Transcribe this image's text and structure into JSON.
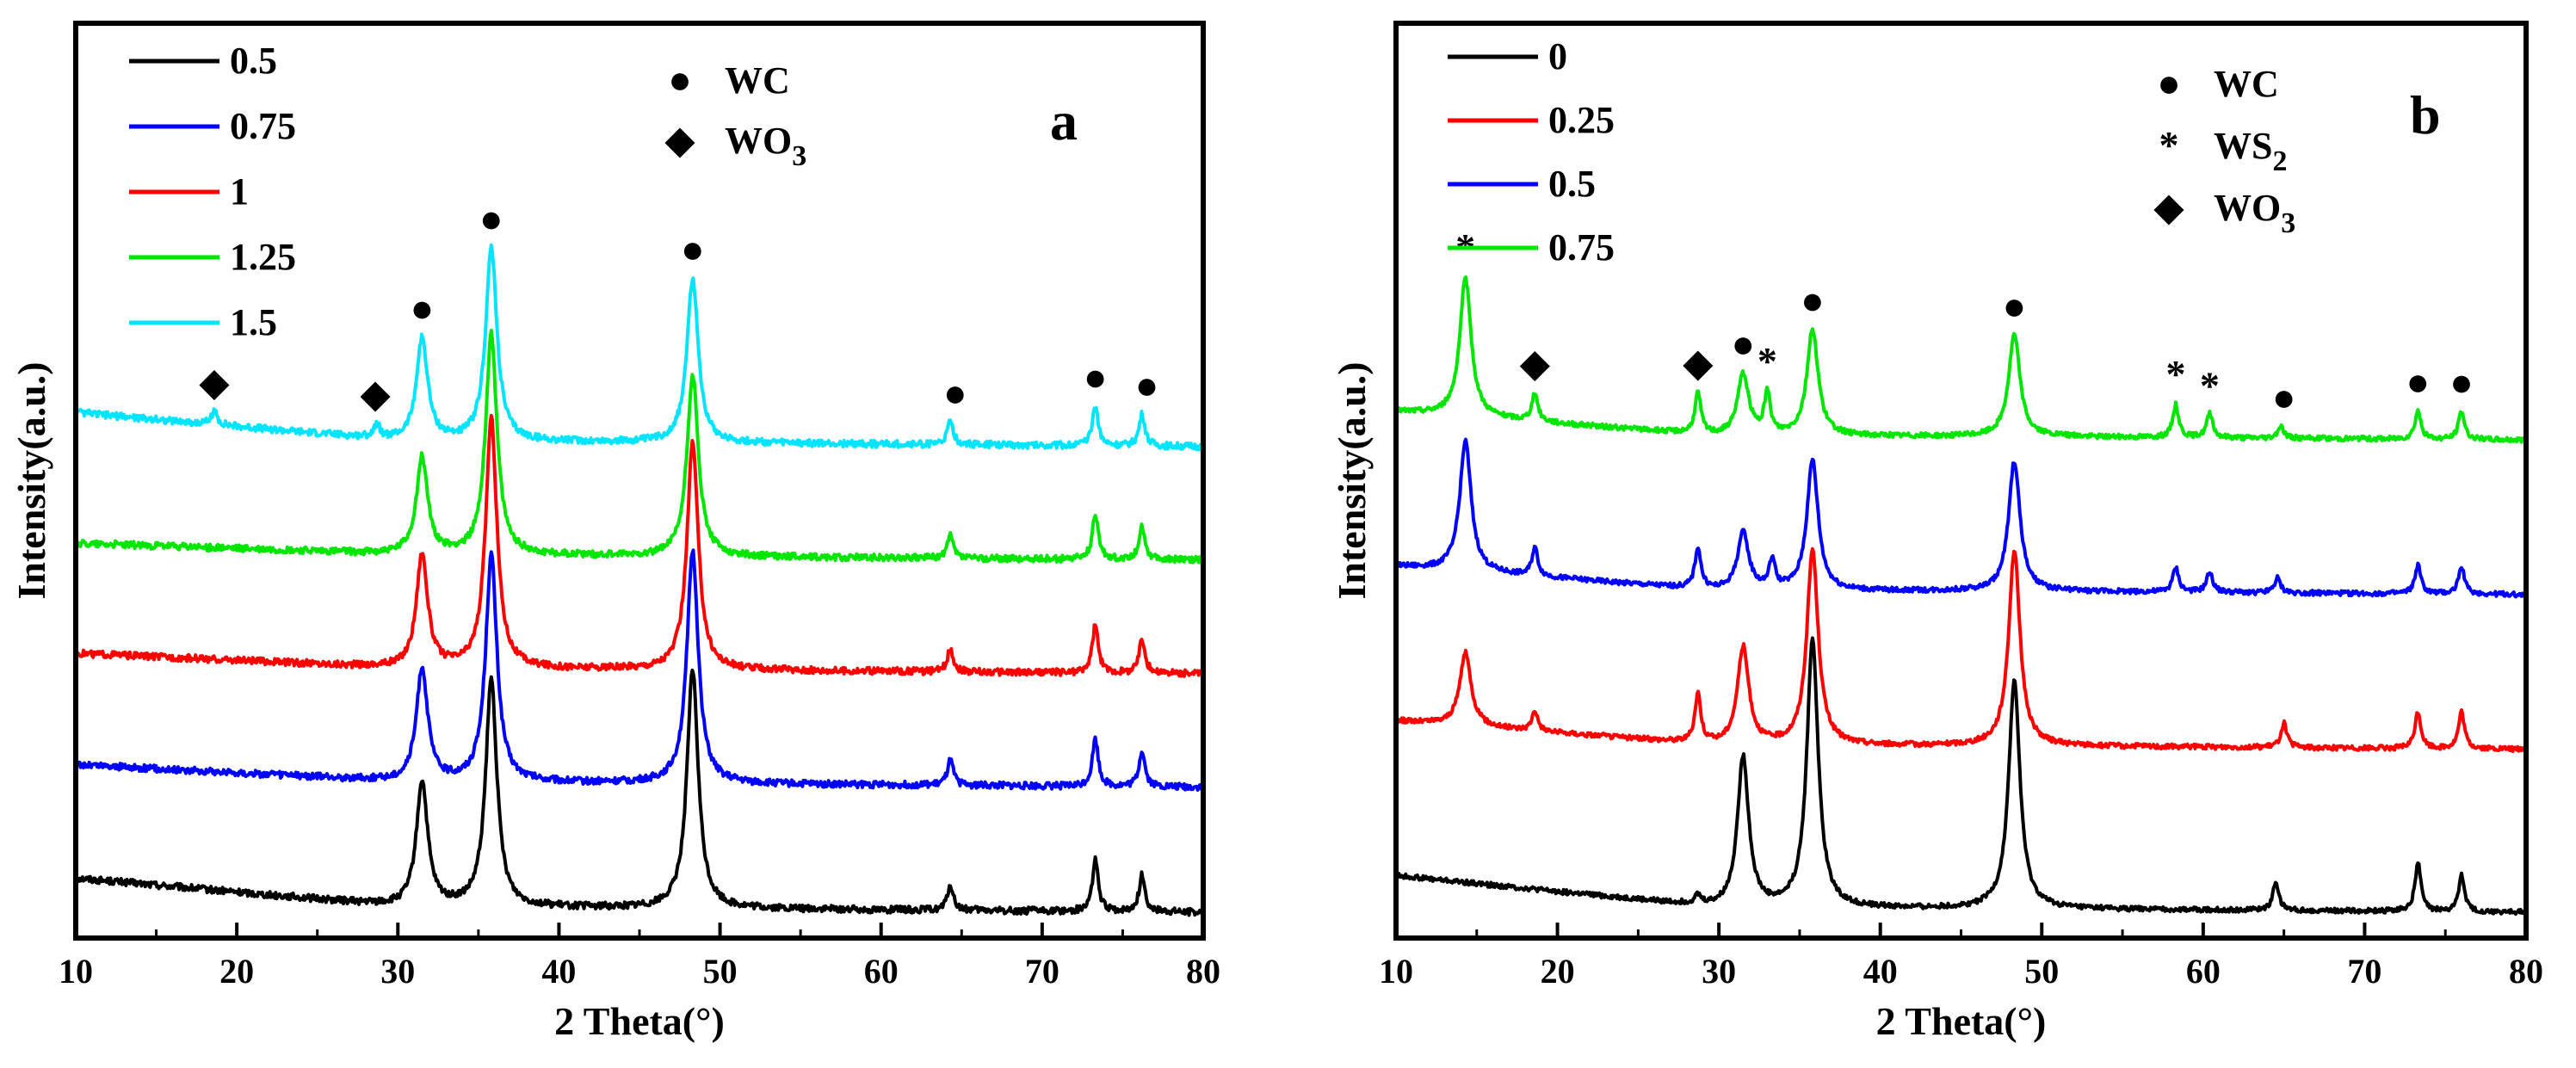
{
  "chart_data": [
    {
      "panel": "a",
      "type": "line",
      "xlabel": "2 Theta(°)",
      "ylabel": "Intensity(a.u.)",
      "xlim": [
        10,
        80
      ],
      "xticks": [
        10,
        20,
        30,
        40,
        50,
        60,
        70,
        80
      ],
      "yticks_shown": false,
      "legend_position": "top-left",
      "baseline_x": [
        10,
        30,
        50,
        80
      ],
      "series": [
        {
          "name": "0.5",
          "color": "#000000",
          "offset": 0.0,
          "baseline": [
            0.3,
            0.05,
            0.03,
            0.0
          ],
          "peaks": [
            [
              31.5,
              1.1
            ],
            [
              35.8,
              2.0
            ],
            [
              48.3,
              2.1
            ],
            [
              64.3,
              0.22
            ],
            [
              73.3,
              0.45
            ],
            [
              76.2,
              0.32
            ]
          ]
        },
        {
          "name": "0.75",
          "color": "#0000ff",
          "offset": 1.1,
          "baseline": [
            0.2,
            0.05,
            0.03,
            0.0
          ],
          "peaks": [
            [
              31.5,
              1.0
            ],
            [
              35.8,
              2.0
            ],
            [
              48.3,
              2.05
            ],
            [
              64.3,
              0.22
            ],
            [
              73.3,
              0.42
            ],
            [
              76.2,
              0.32
            ]
          ]
        },
        {
          "name": "1",
          "color": "#ff0000",
          "offset": 2.1,
          "baseline": [
            0.18,
            0.05,
            0.03,
            0.0
          ],
          "peaks": [
            [
              31.5,
              1.0
            ],
            [
              35.8,
              2.2
            ],
            [
              48.3,
              2.0
            ],
            [
              64.3,
              0.2
            ],
            [
              73.3,
              0.42
            ],
            [
              76.2,
              0.3
            ]
          ]
        },
        {
          "name": "1.25",
          "color": "#00e600",
          "offset": 3.1,
          "baseline": [
            0.15,
            0.05,
            0.03,
            0.0
          ],
          "peaks": [
            [
              31.5,
              0.85
            ],
            [
              35.8,
              1.95
            ],
            [
              48.3,
              1.6
            ],
            [
              64.3,
              0.2
            ],
            [
              73.3,
              0.4
            ],
            [
              76.2,
              0.3
            ]
          ]
        },
        {
          "name": "1.5",
          "color": "#00e5ff",
          "offset": 4.1,
          "baseline": [
            0.3,
            0.05,
            0.03,
            0.0
          ],
          "peaks": [
            [
              18.6,
              0.12
            ],
            [
              28.7,
              0.12
            ],
            [
              31.5,
              0.9
            ],
            [
              35.8,
              1.7
            ],
            [
              48.3,
              1.45
            ],
            [
              64.3,
              0.2
            ],
            [
              73.3,
              0.35
            ],
            [
              76.2,
              0.28
            ]
          ]
        }
      ],
      "peak_markers": [
        {
          "symbol": "◆",
          "x": 18.6
        },
        {
          "symbol": "◆",
          "x": 28.6
        },
        {
          "symbol": "●",
          "x": 31.5
        },
        {
          "symbol": "●",
          "x": 35.8
        },
        {
          "symbol": "●",
          "x": 48.3
        },
        {
          "symbol": "●",
          "x": 64.6
        },
        {
          "symbol": "●",
          "x": 73.3
        },
        {
          "symbol": "●",
          "x": 76.5
        }
      ],
      "marker_legend": [
        {
          "symbol": "●",
          "label": "WC"
        },
        {
          "symbol": "◆",
          "label": "WO",
          "sub": "3"
        }
      ]
    },
    {
      "panel": "b",
      "type": "line",
      "xlabel": "2 Theta(°)",
      "ylabel": "Intensity(a.u.)",
      "xlim": [
        10,
        80
      ],
      "xticks": [
        10,
        20,
        30,
        40,
        50,
        60,
        70,
        80
      ],
      "yticks_shown": false,
      "legend_position": "top-left",
      "baseline_x": [
        10,
        30,
        50,
        80
      ],
      "series": [
        {
          "name": "0",
          "color": "#000000",
          "offset": 0.0,
          "baseline": [
            0.45,
            0.05,
            0.04,
            0.0
          ],
          "peaks": [
            [
              28.7,
              0.1
            ],
            [
              31.5,
              1.85
            ],
            [
              35.8,
              3.3
            ],
            [
              48.3,
              2.8
            ],
            [
              64.5,
              0.35
            ],
            [
              73.3,
              0.6
            ],
            [
              76.0,
              0.45
            ]
          ]
        },
        {
          "name": "0.25",
          "color": "#ff0000",
          "offset": 2.0,
          "baseline": [
            0.35,
            0.05,
            0.04,
            0.0
          ],
          "peaks": [
            [
              14.3,
              0.9
            ],
            [
              18.6,
              0.25
            ],
            [
              28.7,
              0.6
            ],
            [
              31.5,
              1.2
            ],
            [
              35.8,
              2.4
            ],
            [
              48.3,
              2.4
            ],
            [
              65.0,
              0.3
            ],
            [
              73.3,
              0.45
            ],
            [
              76.0,
              0.45
            ]
          ]
        },
        {
          "name": "0.5",
          "color": "#0000ff",
          "offset": 3.9,
          "baseline": [
            0.35,
            0.05,
            0.04,
            0.0
          ],
          "peaks": [
            [
              14.3,
              1.6
            ],
            [
              18.6,
              0.35
            ],
            [
              28.7,
              0.5
            ],
            [
              31.5,
              0.7
            ],
            [
              33.3,
              0.35
            ],
            [
              35.8,
              1.6
            ],
            [
              48.3,
              1.6
            ],
            [
              58.3,
              0.3
            ],
            [
              60.4,
              0.25
            ],
            [
              64.6,
              0.18
            ],
            [
              73.3,
              0.35
            ],
            [
              76.0,
              0.35
            ]
          ]
        },
        {
          "name": "0.75",
          "color": "#00e600",
          "offset": 5.8,
          "baseline": [
            0.35,
            0.05,
            0.04,
            0.0
          ],
          "peaks": [
            [
              14.3,
              1.7
            ],
            [
              18.6,
              0.35
            ],
            [
              28.7,
              0.5
            ],
            [
              31.5,
              0.75
            ],
            [
              33.0,
              0.5
            ],
            [
              35.8,
              1.3
            ],
            [
              48.3,
              1.25
            ],
            [
              58.3,
              0.4
            ],
            [
              60.4,
              0.3
            ],
            [
              64.8,
              0.15
            ],
            [
              73.3,
              0.35
            ],
            [
              76.0,
              0.35
            ]
          ]
        }
      ],
      "peak_markers": [
        {
          "symbol": "*",
          "x": 14.3
        },
        {
          "symbol": "◆",
          "x": 18.6
        },
        {
          "symbol": "◆",
          "x": 28.7
        },
        {
          "symbol": "●",
          "x": 31.5
        },
        {
          "symbol": "*",
          "x": 33.0
        },
        {
          "symbol": "●",
          "x": 35.8
        },
        {
          "symbol": "●",
          "x": 48.3
        },
        {
          "symbol": "*",
          "x": 58.3
        },
        {
          "symbol": "*",
          "x": 60.4
        },
        {
          "symbol": "●",
          "x": 65.0
        },
        {
          "symbol": "●",
          "x": 73.3
        },
        {
          "symbol": "●",
          "x": 76.0
        }
      ],
      "marker_legend": [
        {
          "symbol": "●",
          "label": "WC"
        },
        {
          "symbol": "*",
          "label": "WS",
          "sub": "2"
        },
        {
          "symbol": "◆",
          "label": "WO",
          "sub": "3"
        }
      ]
    }
  ]
}
